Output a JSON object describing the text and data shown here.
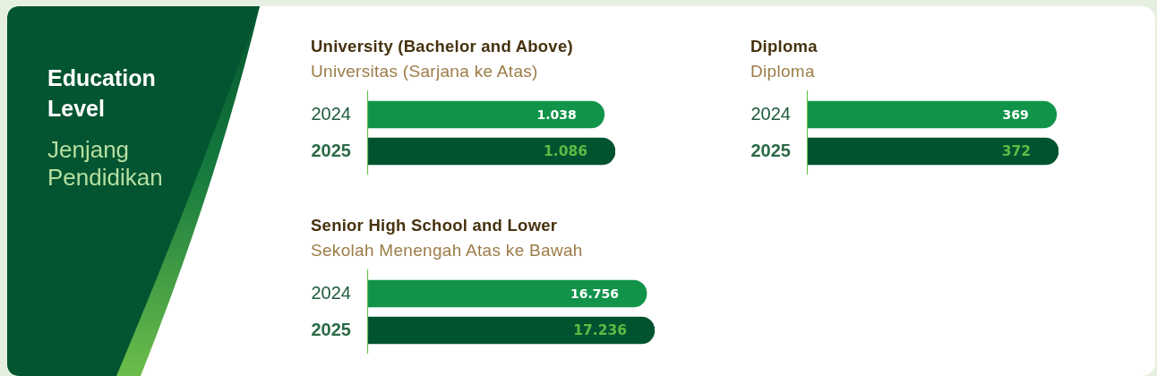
{
  "chart_data": [
    {
      "type": "other",
      "title": "Education Level",
      "subtitle": "Jenjang Pendidikan"
    },
    {
      "type": "bar",
      "title": "University (Bachelor and Above)",
      "subtitle": "Universitas (Sarjana ke Atas)",
      "orientation": "horizontal",
      "categories": [
        "2024",
        "2025"
      ],
      "values": [
        1038,
        1086
      ],
      "colors": [
        "#11944a",
        "#00532f"
      ],
      "value_labels": [
        "1.038",
        "1.086"
      ],
      "tick_labels": "y"
    },
    {
      "type": "bar",
      "title": "Diploma",
      "subtitle": "Diploma",
      "orientation": "horizontal",
      "categories": [
        "2024",
        "2025"
      ],
      "values": [
        369,
        372
      ],
      "colors": [
        "#11944a",
        "#00532f"
      ],
      "value_labels": [
        "369",
        "372"
      ],
      "tick_labels": "y"
    },
    {
      "type": "bar",
      "title": "Senior High School and Lower",
      "subtitle": "Sekolah Menengah Atas ke Bawah",
      "orientation": "horizontal",
      "categories": [
        "2024",
        "2025"
      ],
      "values": [
        16756,
        17236
      ],
      "colors": [
        "#11944a",
        "#00532f"
      ],
      "value_labels": [
        "16.756",
        "17.236"
      ],
      "tick_labels": "y"
    }
  ]
}
